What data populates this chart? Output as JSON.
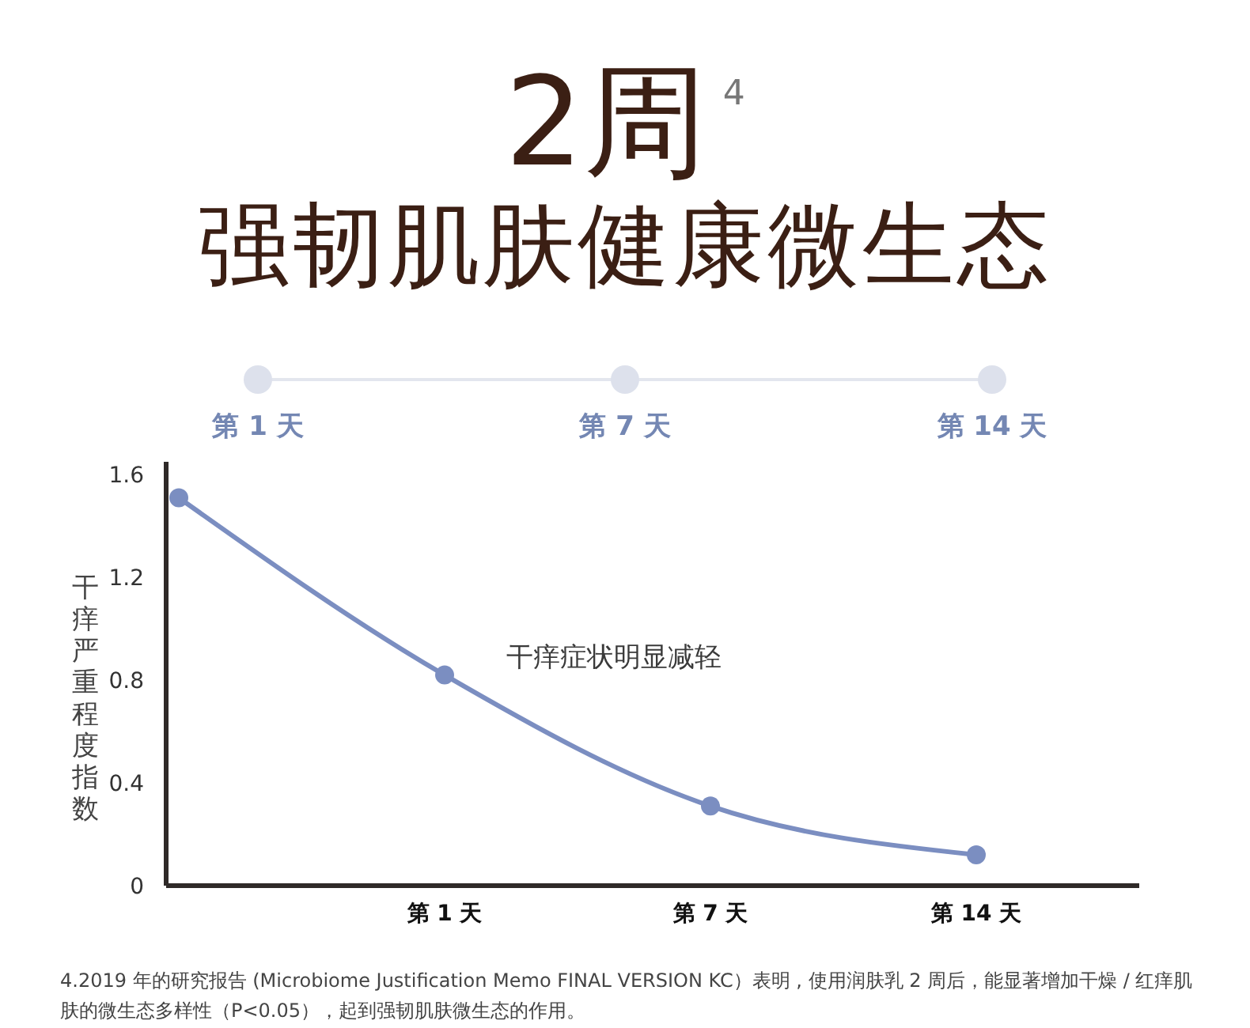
{
  "chart_data": {
    "type": "line",
    "title": "2周$^{4}$",
    "subtitle": "强韧肌肤健康微生态",
    "ylabel": "干痒严重程度指数",
    "categories": [
      null,
      "第 1 天",
      "第 7 天",
      "第 14 天"
    ],
    "series": [
      {
        "color": "#7b8ec1",
        "values": [
          1.51,
          0.82,
          0.31,
          0.12
        ]
      }
    ],
    "ylim": [
      0,
      1.65
    ],
    "yticks": [
      0,
      0.4,
      0.8,
      1.2,
      1.6
    ],
    "marker": "circle",
    "line_style": "solid",
    "annotations": [
      "干痒症状明显减轻",
      "4.2019 年的研究报告 (Microbiome Justification Memo FINAL VERSION KC）表明 , 使用润肤乳 2 周后，能显著增加干燥 / 红痒肌肤的微生态多样性（P<0.05），起到强韧肌肤微生态的作用。"
    ]
  }
}
